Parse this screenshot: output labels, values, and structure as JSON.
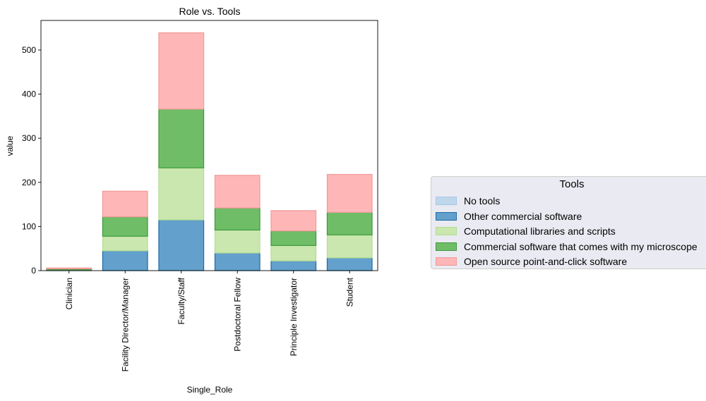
{
  "chart_data": {
    "type": "bar",
    "stacked": true,
    "title": "Role vs. Tools",
    "xlabel": "Single_Role",
    "ylabel": "value",
    "ylim": [
      0,
      567
    ],
    "yticks": [
      0,
      100,
      200,
      300,
      400,
      500
    ],
    "categories": [
      "Clinician",
      "Facility Director/Manager",
      "Faculty/Staff",
      "Postdoctoral Fellow",
      "Principle Investigator",
      "Student"
    ],
    "series": [
      {
        "name": "No tools",
        "values": [
          0,
          0,
          0,
          0,
          0,
          0
        ],
        "fill": "#bfd7eb",
        "stroke": "#a6c8e6"
      },
      {
        "name": "Other commercial software",
        "values": [
          1,
          45,
          115,
          40,
          22,
          29
        ],
        "fill": "#63a0cb",
        "stroke": "#1f6aa8"
      },
      {
        "name": "Computational libraries and scripts",
        "values": [
          1,
          33,
          118,
          52,
          35,
          52
        ],
        "fill": "#c9e7ae",
        "stroke": "#b4dd93"
      },
      {
        "name": "Commercial software that comes with my microscope",
        "values": [
          2,
          44,
          133,
          50,
          33,
          51
        ],
        "fill": "#70bd68",
        "stroke": "#3a9a3a"
      },
      {
        "name": "Open source point-and-click software",
        "values": [
          2,
          58,
          173,
          74,
          46,
          86
        ],
        "fill": "#ffb6b6",
        "stroke": "#f29a9a"
      }
    ],
    "legend": {
      "title": "Tools",
      "position": "right"
    },
    "grid": false
  }
}
